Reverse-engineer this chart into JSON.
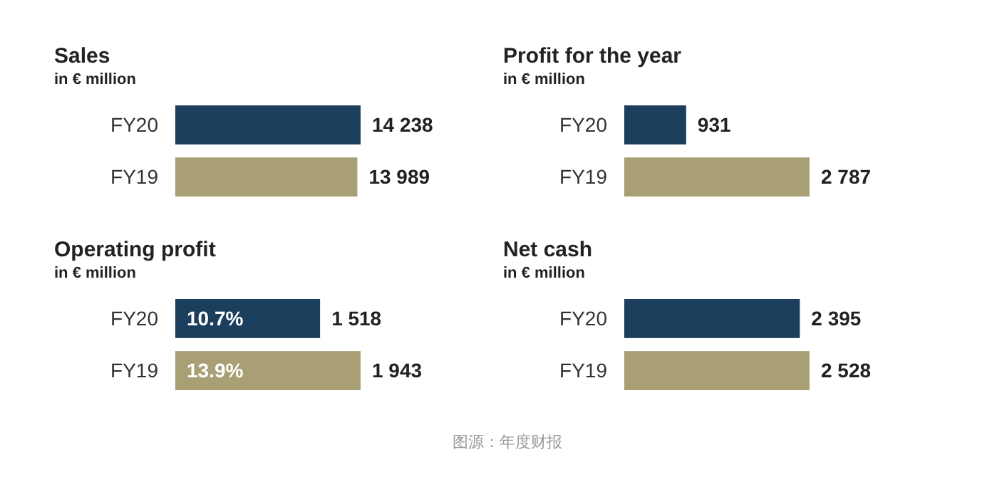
{
  "chart_data": [
    {
      "type": "bar",
      "orientation": "horizontal",
      "title": "Sales",
      "subtitle": "in € million",
      "categories": [
        "FY20",
        "FY19"
      ],
      "values": [
        14238,
        13989
      ],
      "value_labels": [
        "14 238",
        "13 989"
      ],
      "colors": [
        "#1d3f5e",
        "#a89f74"
      ]
    },
    {
      "type": "bar",
      "orientation": "horizontal",
      "title": "Profit for the year",
      "subtitle": "in € million",
      "categories": [
        "FY20",
        "FY19"
      ],
      "values": [
        931,
        2787
      ],
      "value_labels": [
        "931",
        "2 787"
      ],
      "colors": [
        "#1d3f5e",
        "#a89f74"
      ]
    },
    {
      "type": "bar",
      "orientation": "horizontal",
      "title": "Operating profit",
      "subtitle": "in € million",
      "categories": [
        "FY20",
        "FY19"
      ],
      "values": [
        1518,
        1943
      ],
      "value_labels": [
        "1 518",
        "1 943"
      ],
      "colors": [
        "#1d3f5e",
        "#a89f74"
      ],
      "annotations": [
        {
          "text": "10.7%",
          "y": "FY20"
        },
        {
          "text": "13.9%",
          "y": "FY19"
        }
      ]
    },
    {
      "type": "bar",
      "orientation": "horizontal",
      "title": "Net cash",
      "subtitle": "in € million",
      "categories": [
        "FY20",
        "FY19"
      ],
      "values": [
        2395,
        2528
      ],
      "value_labels": [
        "2 395",
        "2 528"
      ],
      "colors": [
        "#1d3f5e",
        "#a89f74"
      ],
      "annotations": [
        "图源：年度财报"
      ]
    }
  ]
}
